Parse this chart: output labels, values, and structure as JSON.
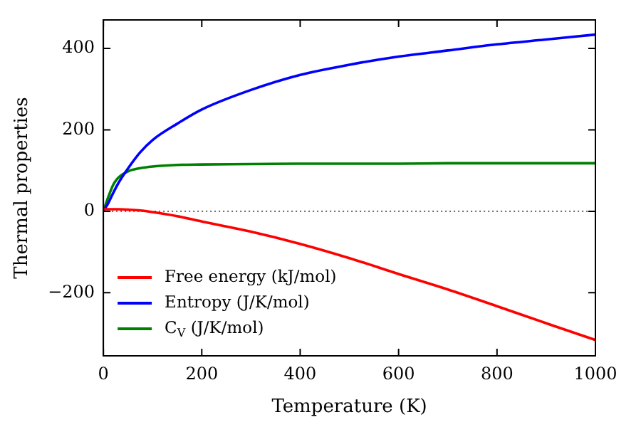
{
  "chart_data": {
    "type": "line",
    "xlabel": "Temperature (K)",
    "ylabel": "Thermal properties",
    "x": [
      0,
      10,
      20,
      30,
      50,
      75,
      100,
      150,
      200,
      300,
      400,
      500,
      600,
      700,
      800,
      900,
      1000
    ],
    "series": [
      {
        "name": "Free energy (kJ/mol)",
        "color": "#ff0000",
        "values": [
          5,
          5,
          5,
          5,
          4,
          2,
          -2,
          -12,
          -25,
          -50,
          -80,
          -115,
          -154,
          -192,
          -233,
          -275,
          -316
        ]
      },
      {
        "name": "Entropy (J/K/mol)",
        "color": "#0000ff",
        "values": [
          0,
          20,
          45,
          68,
          105,
          145,
          175,
          215,
          250,
          298,
          335,
          360,
          380,
          395,
          410,
          422,
          434
        ]
      },
      {
        "name": "C$_{V}$ (J/K/mol)",
        "color": "#008000",
        "values": [
          0,
          35,
          65,
          82,
          98,
          106,
          110,
          114,
          115,
          116,
          117,
          117,
          117,
          118,
          118,
          118,
          118
        ]
      }
    ],
    "xlim": [
      0,
      1000
    ],
    "xticks": [
      0,
      200,
      400,
      600,
      800,
      1000
    ],
    "ylim": [
      -355,
      470
    ],
    "yticks": [
      -200,
      0,
      200,
      400
    ],
    "ref_lines": [
      {
        "axis": "y",
        "value": 0,
        "color": "#000000",
        "line_style": "dotted"
      }
    ],
    "grid": false,
    "legend": "bottom left",
    "marker": "none",
    "line_style": "solid"
  }
}
